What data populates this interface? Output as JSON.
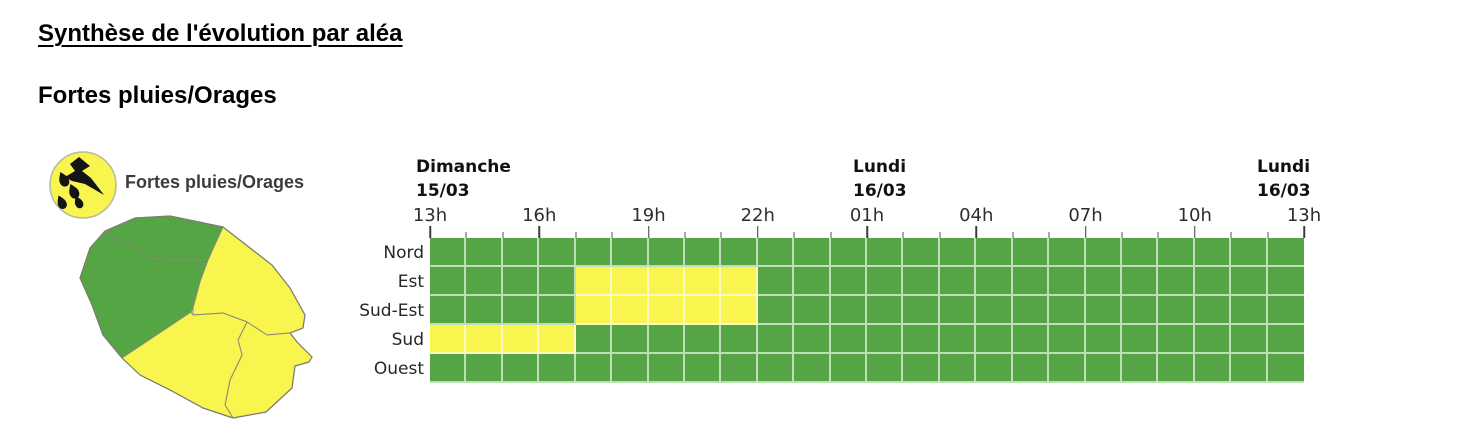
{
  "page": {
    "title": "Synthèse de l'évolution par aléa",
    "subtitle": "Fortes pluies/Orages"
  },
  "legend": {
    "label": "Fortes pluies/Orages",
    "icon": "rain-lightning-icon"
  },
  "colors": {
    "green": "#55a545",
    "yellow": "#f8f54e"
  },
  "map": {
    "island": "La Réunion",
    "zones": [
      {
        "id": "nord",
        "status": "green"
      },
      {
        "id": "est",
        "status": "yellow"
      },
      {
        "id": "sud-est",
        "status": "yellow"
      },
      {
        "id": "sud",
        "status": "yellow"
      },
      {
        "id": "ouest",
        "status": "green"
      }
    ]
  },
  "chart_data": {
    "type": "heatmap",
    "title": "Fortes pluies/Orages",
    "x_axis": {
      "unit": "hour",
      "hours_per_cell": 1,
      "start": "Dimanche 15/03 13h",
      "end": "Lundi 16/03 13h",
      "tick_labels": [
        "13h",
        "16h",
        "19h",
        "22h",
        "01h",
        "04h",
        "07h",
        "10h",
        "13h"
      ]
    },
    "days": [
      {
        "name": "Dimanche",
        "date": "15/03"
      },
      {
        "name": "Lundi",
        "date": "16/03"
      },
      {
        "name": "Lundi",
        "date": "16/03"
      }
    ],
    "rows": [
      {
        "label": "Nord",
        "cells": [
          "green",
          "green",
          "green",
          "green",
          "green",
          "green",
          "green",
          "green",
          "green",
          "green",
          "green",
          "green",
          "green",
          "green",
          "green",
          "green",
          "green",
          "green",
          "green",
          "green",
          "green",
          "green",
          "green",
          "green"
        ]
      },
      {
        "label": "Est",
        "cells": [
          "green",
          "green",
          "green",
          "green",
          "yellow",
          "yellow",
          "yellow",
          "yellow",
          "yellow",
          "green",
          "green",
          "green",
          "green",
          "green",
          "green",
          "green",
          "green",
          "green",
          "green",
          "green",
          "green",
          "green",
          "green",
          "green"
        ]
      },
      {
        "label": "Sud-Est",
        "cells": [
          "green",
          "green",
          "green",
          "green",
          "yellow",
          "yellow",
          "yellow",
          "yellow",
          "yellow",
          "green",
          "green",
          "green",
          "green",
          "green",
          "green",
          "green",
          "green",
          "green",
          "green",
          "green",
          "green",
          "green",
          "green",
          "green"
        ]
      },
      {
        "label": "Sud",
        "cells": [
          "yellow",
          "yellow",
          "yellow",
          "yellow",
          "green",
          "green",
          "green",
          "green",
          "green",
          "green",
          "green",
          "green",
          "green",
          "green",
          "green",
          "green",
          "green",
          "green",
          "green",
          "green",
          "green",
          "green",
          "green",
          "green"
        ]
      },
      {
        "label": "Ouest",
        "cells": [
          "green",
          "green",
          "green",
          "green",
          "green",
          "green",
          "green",
          "green",
          "green",
          "green",
          "green",
          "green",
          "green",
          "green",
          "green",
          "green",
          "green",
          "green",
          "green",
          "green",
          "green",
          "green",
          "green",
          "green"
        ]
      }
    ]
  }
}
